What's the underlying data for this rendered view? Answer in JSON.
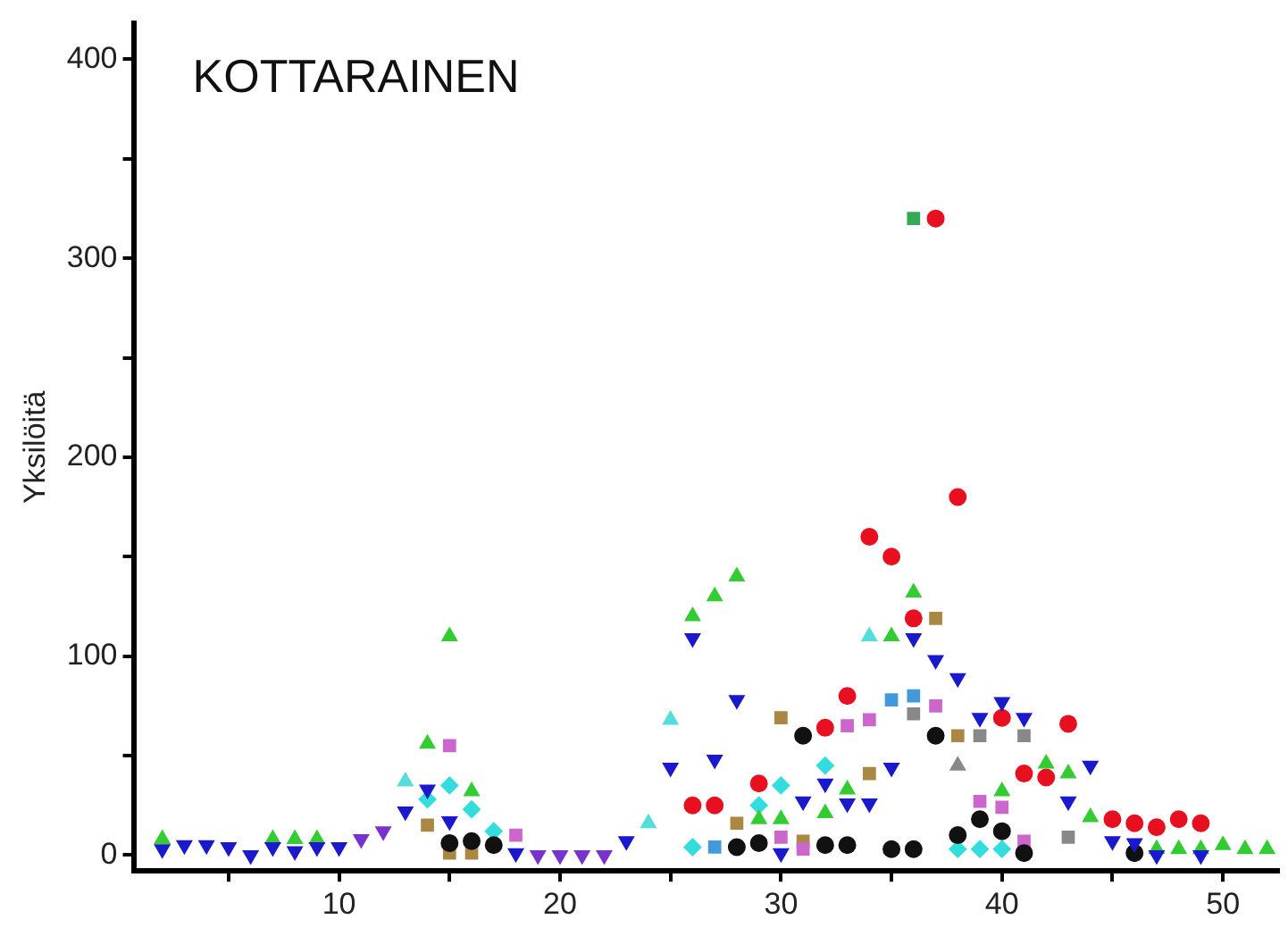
{
  "chart_data": {
    "type": "scatter",
    "title": "KOTTARAINEN",
    "ylabel": "Yksilöitä",
    "xlim": [
      0.7,
      52.5
    ],
    "xticks": [
      {
        "value": 5,
        "label": null
      },
      10,
      {
        "value": 15,
        "label": null
      },
      20,
      {
        "value": 25,
        "label": null
      },
      30,
      {
        "value": 35,
        "label": null
      },
      40,
      {
        "value": 45,
        "label": null
      },
      50
    ],
    "ylim": [
      -8,
      418
    ],
    "yticks": [
      0,
      {
        "value": 50,
        "label": null
      },
      100,
      {
        "value": 150,
        "label": null
      },
      200,
      {
        "value": 250,
        "label": null
      },
      300,
      {
        "value": 350,
        "label": null
      },
      400
    ],
    "grid": false,
    "legend": false,
    "series": [
      {
        "color": "#1a1acc",
        "marker": "triangle-down",
        "x": [
          2,
          3,
          4,
          5,
          6,
          7,
          8,
          9,
          10,
          13,
          14,
          15,
          18,
          23,
          25,
          26,
          27,
          28,
          30,
          31,
          32,
          33,
          34,
          35,
          36,
          37,
          38,
          39,
          40,
          41,
          43,
          44,
          45,
          46,
          47,
          49
        ],
        "values": [
          3,
          5,
          5,
          4,
          0,
          4,
          2,
          4,
          4,
          22,
          33,
          17,
          1,
          7,
          44,
          109,
          48,
          78,
          1,
          27,
          36,
          26,
          26,
          44,
          109,
          98,
          89,
          69,
          77,
          69,
          27,
          45,
          7,
          6,
          0,
          0
        ]
      },
      {
        "color": "#7733cc",
        "marker": "triangle-down",
        "x": [
          11,
          12,
          19,
          20,
          21,
          22
        ],
        "values": [
          8,
          12,
          0,
          0,
          0,
          0
        ]
      },
      {
        "color": "#33cc33",
        "marker": "triangle",
        "x": [
          2,
          7,
          8,
          9,
          14,
          15,
          16,
          26,
          27,
          28,
          29,
          30,
          32,
          33,
          35,
          36,
          40,
          42,
          43,
          44,
          47,
          48,
          49,
          50,
          51,
          52
        ],
        "values": [
          8,
          8,
          8,
          8,
          56,
          110,
          32,
          120,
          130,
          140,
          18,
          18,
          21,
          33,
          110,
          132,
          32,
          46,
          41,
          19,
          3,
          3,
          3,
          5,
          3,
          3
        ]
      },
      {
        "color": "#55dddd",
        "marker": "triangle",
        "x": [
          13,
          24,
          25,
          34
        ],
        "values": [
          37,
          16,
          68,
          110
        ]
      },
      {
        "color": "#e81020",
        "marker": "circle",
        "x": [
          26,
          27,
          29,
          32,
          33,
          34,
          35,
          36,
          37,
          38,
          40,
          41,
          42,
          43,
          45,
          46,
          47,
          48,
          49
        ],
        "values": [
          25,
          25,
          36,
          64,
          80,
          160,
          150,
          119,
          320,
          180,
          69,
          41,
          39,
          66,
          18,
          16,
          14,
          18,
          16
        ]
      },
      {
        "color": "#111111",
        "marker": "circle",
        "x": [
          15,
          16,
          17,
          28,
          29,
          31,
          32,
          33,
          35,
          36,
          37,
          38,
          39,
          40,
          41,
          46
        ],
        "values": [
          6,
          7,
          5,
          4,
          6,
          60,
          5,
          5,
          3,
          3,
          60,
          10,
          18,
          12,
          1,
          1
        ]
      },
      {
        "color": "#33dddd",
        "marker": "diamond",
        "x": [
          14,
          15,
          16,
          17,
          26,
          29,
          30,
          32,
          38,
          39,
          40
        ],
        "values": [
          28,
          35,
          23,
          12,
          4,
          25,
          35,
          45,
          3,
          3,
          3
        ]
      },
      {
        "color": "#cc66cc",
        "marker": "square",
        "x": [
          15,
          18,
          30,
          31,
          33,
          34,
          37,
          39,
          40,
          41
        ],
        "values": [
          55,
          10,
          9,
          3,
          65,
          68,
          75,
          27,
          24,
          7
        ]
      },
      {
        "color": "#aa8844",
        "marker": "square",
        "x": [
          14,
          15,
          16,
          28,
          30,
          31,
          34,
          37,
          38
        ],
        "values": [
          15,
          1,
          1,
          16,
          69,
          7,
          41,
          119,
          60
        ]
      },
      {
        "color": "#4499dd",
        "marker": "square",
        "x": [
          27,
          35,
          36
        ],
        "values": [
          4,
          78,
          80
        ]
      },
      {
        "color": "#888888",
        "marker": "square",
        "x": [
          36,
          39,
          41,
          43
        ],
        "values": [
          71,
          60,
          60,
          9
        ]
      },
      {
        "color": "#888888",
        "marker": "triangle",
        "x": [
          38
        ],
        "values": [
          45
        ]
      },
      {
        "color": "#33aa55",
        "marker": "square",
        "x": [
          36
        ],
        "values": [
          320
        ]
      }
    ]
  }
}
